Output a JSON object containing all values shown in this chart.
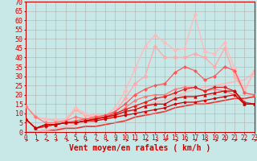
{
  "xlabel": "Vent moyen/en rafales ( km/h )",
  "xlim": [
    0,
    23
  ],
  "ylim": [
    0,
    70
  ],
  "yticks": [
    0,
    5,
    10,
    15,
    20,
    25,
    30,
    35,
    40,
    45,
    50,
    55,
    60,
    65,
    70
  ],
  "xticks": [
    0,
    1,
    2,
    3,
    4,
    5,
    6,
    7,
    8,
    9,
    10,
    11,
    12,
    13,
    14,
    15,
    16,
    17,
    18,
    19,
    20,
    21,
    22,
    23
  ],
  "bg_color": "#c8e8e8",
  "grid_color": "#b0b0b0",
  "series": [
    {
      "x": [
        0,
        1,
        2,
        3,
        4,
        5,
        6,
        7,
        8,
        9,
        10,
        11,
        12,
        13,
        14,
        15,
        16,
        17,
        18,
        19,
        20,
        21,
        22,
        23
      ],
      "y": [
        7,
        2,
        4,
        4,
        5,
        5,
        6,
        6,
        7,
        8,
        9,
        10,
        11,
        12,
        13,
        15,
        16,
        16,
        17,
        18,
        19,
        20,
        15,
        15
      ],
      "color": "#cc0000",
      "lw": 0.9,
      "marker": "o",
      "ms": 2.0,
      "zorder": 5
    },
    {
      "x": [
        0,
        1,
        2,
        3,
        4,
        5,
        6,
        7,
        8,
        9,
        10,
        11,
        12,
        13,
        14,
        15,
        16,
        17,
        18,
        19,
        20,
        21,
        22,
        23
      ],
      "y": [
        7,
        2,
        4,
        4,
        5,
        5,
        6,
        7,
        8,
        9,
        11,
        12,
        14,
        15,
        15,
        18,
        19,
        19,
        20,
        21,
        22,
        22,
        15,
        15
      ],
      "color": "#cc0000",
      "lw": 0.9,
      "marker": "^",
      "ms": 2.5,
      "zorder": 5
    },
    {
      "x": [
        0,
        1,
        2,
        3,
        4,
        5,
        6,
        7,
        8,
        9,
        10,
        11,
        12,
        13,
        14,
        15,
        16,
        17,
        18,
        19,
        20,
        21,
        22,
        23
      ],
      "y": [
        7,
        2,
        3,
        4,
        5,
        5,
        6,
        7,
        8,
        10,
        12,
        14,
        16,
        18,
        19,
        21,
        23,
        24,
        22,
        24,
        24,
        22,
        16,
        15
      ],
      "color": "#dd2222",
      "lw": 0.9,
      "marker": "D",
      "ms": 2.0,
      "zorder": 4
    },
    {
      "x": [
        0,
        1,
        2,
        3,
        4,
        5,
        6,
        7,
        8,
        9,
        10,
        11,
        12,
        13,
        14,
        15,
        16,
        17,
        18,
        19,
        20,
        21,
        22,
        23
      ],
      "y": [
        14,
        8,
        5,
        5,
        6,
        8,
        7,
        7,
        8,
        9,
        13,
        17,
        19,
        20,
        20,
        23,
        24,
        24,
        22,
        23,
        22,
        20,
        15,
        15
      ],
      "color": "#ff7777",
      "lw": 0.9,
      "marker": "D",
      "ms": 2.0,
      "zorder": 3
    },
    {
      "x": [
        0,
        1,
        2,
        3,
        4,
        5,
        6,
        7,
        8,
        9,
        10,
        11,
        12,
        13,
        14,
        15,
        16,
        17,
        18,
        19,
        20,
        21,
        22,
        23
      ],
      "y": [
        7,
        2,
        3,
        4,
        5,
        6,
        7,
        8,
        9,
        11,
        15,
        20,
        23,
        25,
        26,
        32,
        35,
        33,
        28,
        30,
        35,
        33,
        21,
        20
      ],
      "color": "#ff5555",
      "lw": 0.9,
      "marker": "D",
      "ms": 2.0,
      "zorder": 3
    },
    {
      "x": [
        0,
        1,
        2,
        3,
        4,
        5,
        6,
        7,
        8,
        9,
        10,
        11,
        12,
        13,
        14,
        15,
        16,
        17,
        18,
        19,
        20,
        21,
        22,
        23
      ],
      "y": [
        14,
        8,
        7,
        6,
        6,
        12,
        9,
        8,
        8,
        11,
        18,
        26,
        30,
        46,
        40,
        40,
        40,
        42,
        40,
        35,
        45,
        30,
        22,
        33
      ],
      "color": "#ffaaaa",
      "lw": 1.0,
      "marker": "D",
      "ms": 2.5,
      "zorder": 2
    },
    {
      "x": [
        0,
        1,
        2,
        3,
        4,
        5,
        6,
        7,
        8,
        9,
        10,
        11,
        12,
        13,
        14,
        15,
        16,
        17,
        18,
        19,
        20,
        21,
        22,
        23
      ],
      "y": [
        14,
        8,
        7,
        7,
        7,
        13,
        10,
        9,
        9,
        13,
        22,
        34,
        46,
        52,
        48,
        44,
        45,
        63,
        43,
        42,
        48,
        34,
        23,
        32
      ],
      "color": "#ffbbbb",
      "lw": 1.0,
      "marker": "D",
      "ms": 2.5,
      "zorder": 2
    },
    {
      "x": [
        0,
        1,
        2,
        3,
        4,
        5,
        6,
        7,
        8,
        9,
        10,
        11,
        12,
        13,
        14,
        15,
        16,
        17,
        18,
        19,
        20,
        21,
        22,
        23
      ],
      "y": [
        0,
        0,
        1,
        1,
        2,
        2,
        3,
        3,
        4,
        5,
        6,
        8,
        9,
        10,
        11,
        13,
        14,
        15,
        15,
        16,
        17,
        18,
        18,
        19
      ],
      "color": "#ee3333",
      "lw": 1.2,
      "marker": null,
      "ms": 0,
      "zorder": 1
    },
    {
      "x": [
        0,
        1,
        2,
        3,
        4,
        5,
        6,
        7,
        8,
        9,
        10,
        11,
        12,
        13,
        14,
        15,
        16,
        17,
        18,
        19,
        20,
        21,
        22,
        23
      ],
      "y": [
        0,
        0,
        1,
        2,
        3,
        4,
        5,
        6,
        7,
        8,
        10,
        12,
        14,
        16,
        17,
        19,
        21,
        23,
        24,
        25,
        26,
        27,
        28,
        32
      ],
      "color": "#ffbbbb",
      "lw": 1.2,
      "marker": null,
      "ms": 0,
      "zorder": 1
    }
  ],
  "arrow_color": "#cc0000",
  "tick_color": "#cc0000",
  "xlabel_color": "#cc0000",
  "xlabel_fontsize": 7,
  "ytick_fontsize": 6,
  "xtick_fontsize": 5.5,
  "arrow_directions": [
    45,
    0,
    0,
    45,
    0,
    0,
    45,
    0,
    0,
    45,
    0,
    45,
    0,
    0,
    45,
    0,
    0,
    45,
    0,
    0,
    45,
    45,
    45,
    45
  ]
}
